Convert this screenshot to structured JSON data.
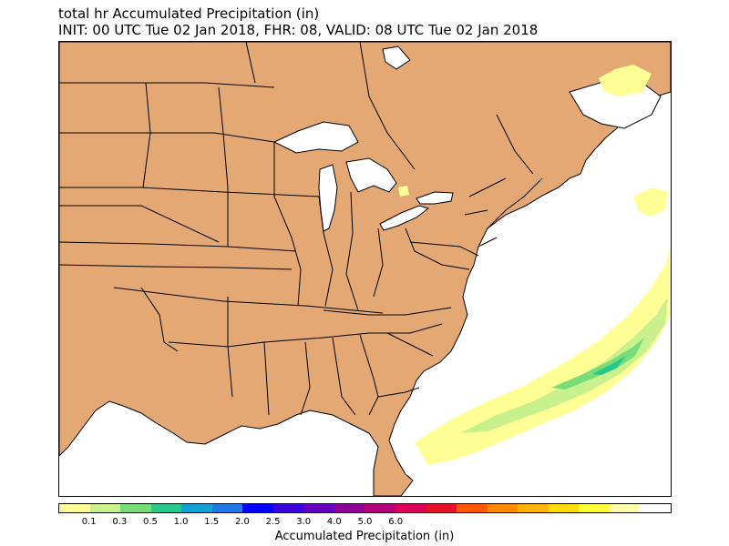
{
  "header": {
    "title_line_1": "total hr Accumulated Precipitation (in)",
    "title_line_2": "INIT: 00 UTC Tue 02 Jan 2018, FHR: 08, VALID: 08 UTC Tue 02 Jan 2018"
  },
  "colors": {
    "land": "#e3a873",
    "water": "#ffffff",
    "boundary": "#000000"
  },
  "colorbar": {
    "label": "Accumulated Precipitation (in)",
    "bin_colors": [
      "#ffff96",
      "#c8f08c",
      "#78dc78",
      "#28c88c",
      "#14a0d2",
      "#1e78e6",
      "#0000ff",
      "#3c00dc",
      "#6400be",
      "#8c0096",
      "#b40078",
      "#dc005a",
      "#e61428",
      "#ff5a00",
      "#ff8c00",
      "#ffb400",
      "#ffdc00",
      "#ffff3c",
      "#ffffaa",
      "#ffffff"
    ],
    "tick_labels": [
      "0.1",
      "0.3",
      "0.5",
      "1.0",
      "1.5",
      "2.0",
      "2.5",
      "3.0",
      "4.0",
      "5.0",
      "6.0"
    ]
  },
  "map": {
    "region": "Eastern United States and Atlantic coast",
    "feature": "Offshore accumulated precipitation band, mostly 0.1-0.5 in",
    "precip_bins_present": [
      "0.1",
      "0.3",
      "0.5"
    ]
  }
}
